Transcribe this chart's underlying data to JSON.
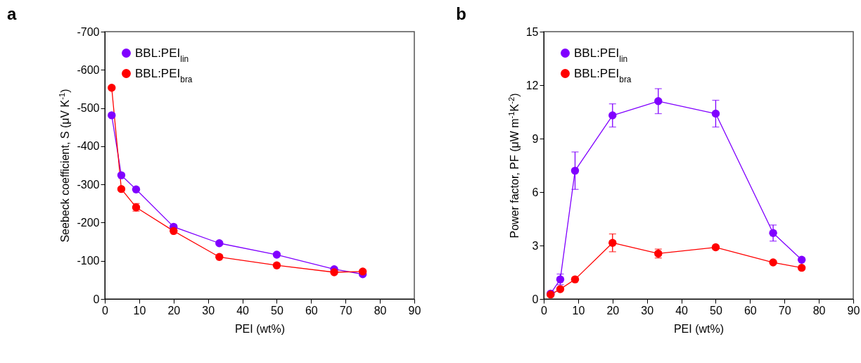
{
  "chart_data": [
    {
      "type": "line",
      "title": "a",
      "xlabel": "PEI (wt%)",
      "ylabel": "Seebeck coefficient, S (μV K$^{-1}$)",
      "x": [
        2,
        4.8,
        9.1,
        20,
        33.3,
        50,
        66.7,
        75
      ],
      "series": [
        {
          "name": "BBL:PEI$_{lin}$",
          "color": "#8000ff",
          "values": [
            -481,
            -324,
            -287,
            -189,
            -146,
            -116,
            -78,
            -65
          ]
        },
        {
          "name": "BBL:PEI$_{bra}$",
          "color": "#ff0000",
          "values": [
            -553,
            -288,
            -240,
            -178,
            -110,
            -88,
            -70,
            -72
          ],
          "errors": [
            null,
            null,
            10,
            null,
            null,
            null,
            null,
            null
          ]
        }
      ],
      "xlim": [
        0,
        90
      ],
      "xticks": [
        0,
        10,
        20,
        30,
        40,
        50,
        60,
        70,
        80,
        90
      ],
      "ylim": [
        0,
        -700
      ],
      "yticks": [
        0,
        -100,
        -200,
        -300,
        -400,
        -500,
        -600,
        -700
      ],
      "legend": "top left",
      "marker": "circle",
      "line_style": "solid",
      "grid": false
    },
    {
      "type": "line",
      "title": "b",
      "xlabel": "PEI (wt%)",
      "ylabel": "Power factor, PF (μW m$^{-1}$K$^{-2}$)",
      "x": [
        2,
        4.8,
        9.1,
        20,
        33.3,
        50,
        66.7,
        75
      ],
      "series": [
        {
          "name": "BBL:PEI$_{lin}$",
          "color": "#8000ff",
          "values": [
            0.3,
            1.1,
            7.2,
            10.3,
            11.1,
            10.4,
            3.7,
            2.2
          ],
          "errors": [
            null,
            0.3,
            1.05,
            0.65,
            0.7,
            0.75,
            0.45,
            null
          ]
        },
        {
          "name": "BBL:PEI$_{bra}$",
          "color": "#ff0000",
          "values": [
            0.25,
            0.55,
            1.1,
            3.15,
            2.55,
            2.9,
            2.05,
            1.75
          ],
          "errors": [
            null,
            null,
            null,
            0.5,
            0.25,
            null,
            null,
            null
          ]
        }
      ],
      "xlim": [
        0,
        90
      ],
      "xticks": [
        0,
        10,
        20,
        30,
        40,
        50,
        60,
        70,
        80,
        90
      ],
      "ylim": [
        0,
        15
      ],
      "yticks": [
        0,
        3,
        6,
        9,
        12,
        15
      ],
      "legend": "top left",
      "marker": "circle",
      "line_style": "solid",
      "grid": false
    }
  ]
}
